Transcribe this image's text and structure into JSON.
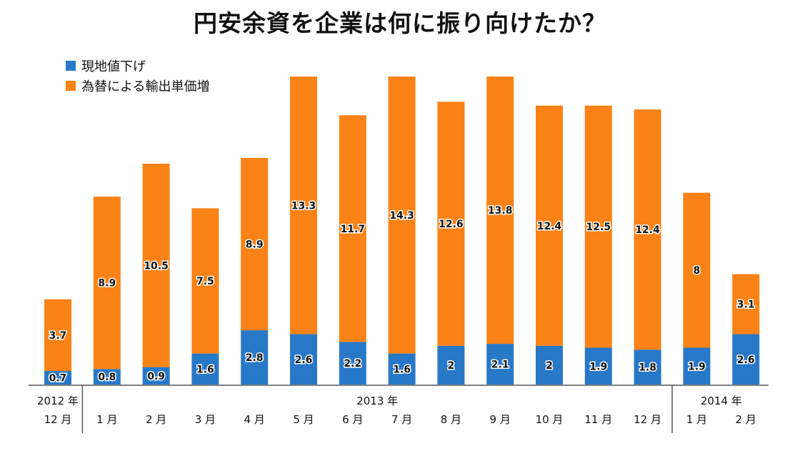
{
  "chart_data": {
    "type": "bar",
    "stacked": true,
    "title": "円安余資を企業は何に振り向けたか？",
    "categories": [
      "12 月",
      "1 月",
      "2 月",
      "3 月",
      "4 月",
      "5 月",
      "6 月",
      "7 月",
      "8 月",
      "9 月",
      "10 月",
      "11 月",
      "12 月",
      "1 月",
      "2 月"
    ],
    "year_groups": [
      {
        "label": "2012 年",
        "start": 0,
        "end": 0
      },
      {
        "label": "2013 年",
        "start": 1,
        "end": 12
      },
      {
        "label": "2014 年",
        "start": 13,
        "end": 14
      }
    ],
    "series": [
      {
        "name": "現地値下げ",
        "color": "#2878c8",
        "values": [
          0.7,
          0.8,
          0.9,
          1.6,
          2.8,
          2.6,
          2.2,
          1.6,
          2,
          2.1,
          2,
          1.9,
          1.8,
          1.9,
          2.6
        ]
      },
      {
        "name": "為替による輸出単価増",
        "color": "#fb8216",
        "values": [
          3.7,
          8.9,
          10.5,
          7.5,
          8.9,
          13.3,
          11.7,
          14.3,
          12.6,
          13.8,
          12.4,
          12.5,
          12.4,
          8,
          3.1
        ]
      }
    ],
    "xlabel": "",
    "ylabel": "",
    "ylim": [
      0,
      16.9
    ],
    "grid": false,
    "legend": "top-left"
  }
}
